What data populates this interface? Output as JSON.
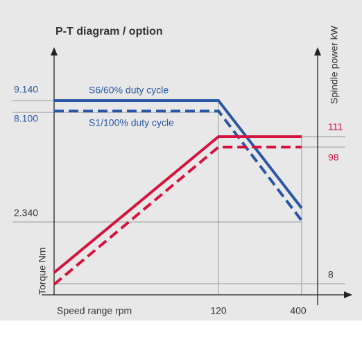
{
  "title": "P-T diagram / option",
  "y_axis_label": "Torque Nm",
  "y2_axis_label": "Spindle power kW",
  "x_axis_label": "Speed range rpm",
  "left_labels": [
    "9.140",
    "8.100",
    "2.340"
  ],
  "right_labels": [
    "111",
    "98",
    "8"
  ],
  "bottom_labels": [
    "120",
    "400"
  ],
  "legend": [
    "S6/60% duty cycle",
    "S1/100% duty cycle"
  ]
}
